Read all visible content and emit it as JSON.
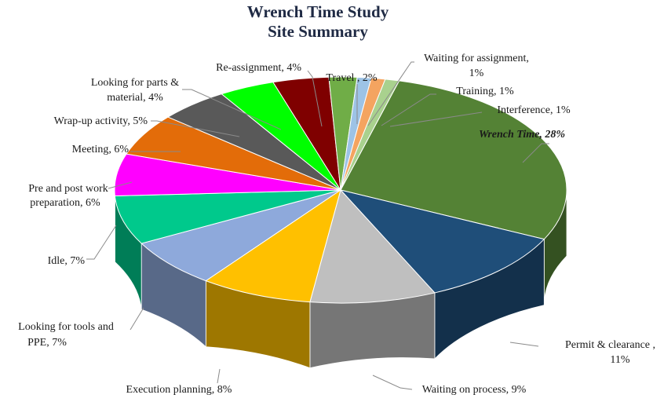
{
  "chart_data": {
    "type": "pie",
    "title": "Wrench Time Study",
    "subtitle": "Site Summary",
    "slices": [
      {
        "label": "Wrench Time, 28%",
        "value": 28,
        "color": "#548235",
        "highlight": true
      },
      {
        "label": "Permit & clearance , 11%",
        "value": 11,
        "color": "#1f4e79"
      },
      {
        "label": "Waiting on process, 9%",
        "value": 9,
        "color": "#bfbfbf"
      },
      {
        "label": "Execution planning, 8%",
        "value": 8,
        "color": "#ffc000"
      },
      {
        "label": "Looking for tools and PPE, 7%",
        "value": 7,
        "color": "#8ea9db"
      },
      {
        "label": "Idle, 7%",
        "value": 7,
        "color": "#00c98c"
      },
      {
        "label": "Pre and post work preparation, 6%",
        "value": 6,
        "color": "#ff00ff"
      },
      {
        "label": "Meeting, 6%",
        "value": 6,
        "color": "#e36c09"
      },
      {
        "label": "Wrap-up activity, 5%",
        "value": 5,
        "color": "#595959"
      },
      {
        "label": "Looking for parts & material, 4%",
        "value": 4,
        "color": "#00ff00"
      },
      {
        "label": "Re-assignment, 4%",
        "value": 4,
        "color": "#7f0000"
      },
      {
        "label": "Travel , 2%",
        "value": 2,
        "color": "#70ad47"
      },
      {
        "label": "Waiting for assignment, 1%",
        "value": 1,
        "color": "#9dc3e6"
      },
      {
        "label": "Training, 1%",
        "value": 1,
        "color": "#f4a460"
      },
      {
        "label": "Interference, 1%",
        "value": 1,
        "color": "#a9d18e"
      }
    ]
  }
}
